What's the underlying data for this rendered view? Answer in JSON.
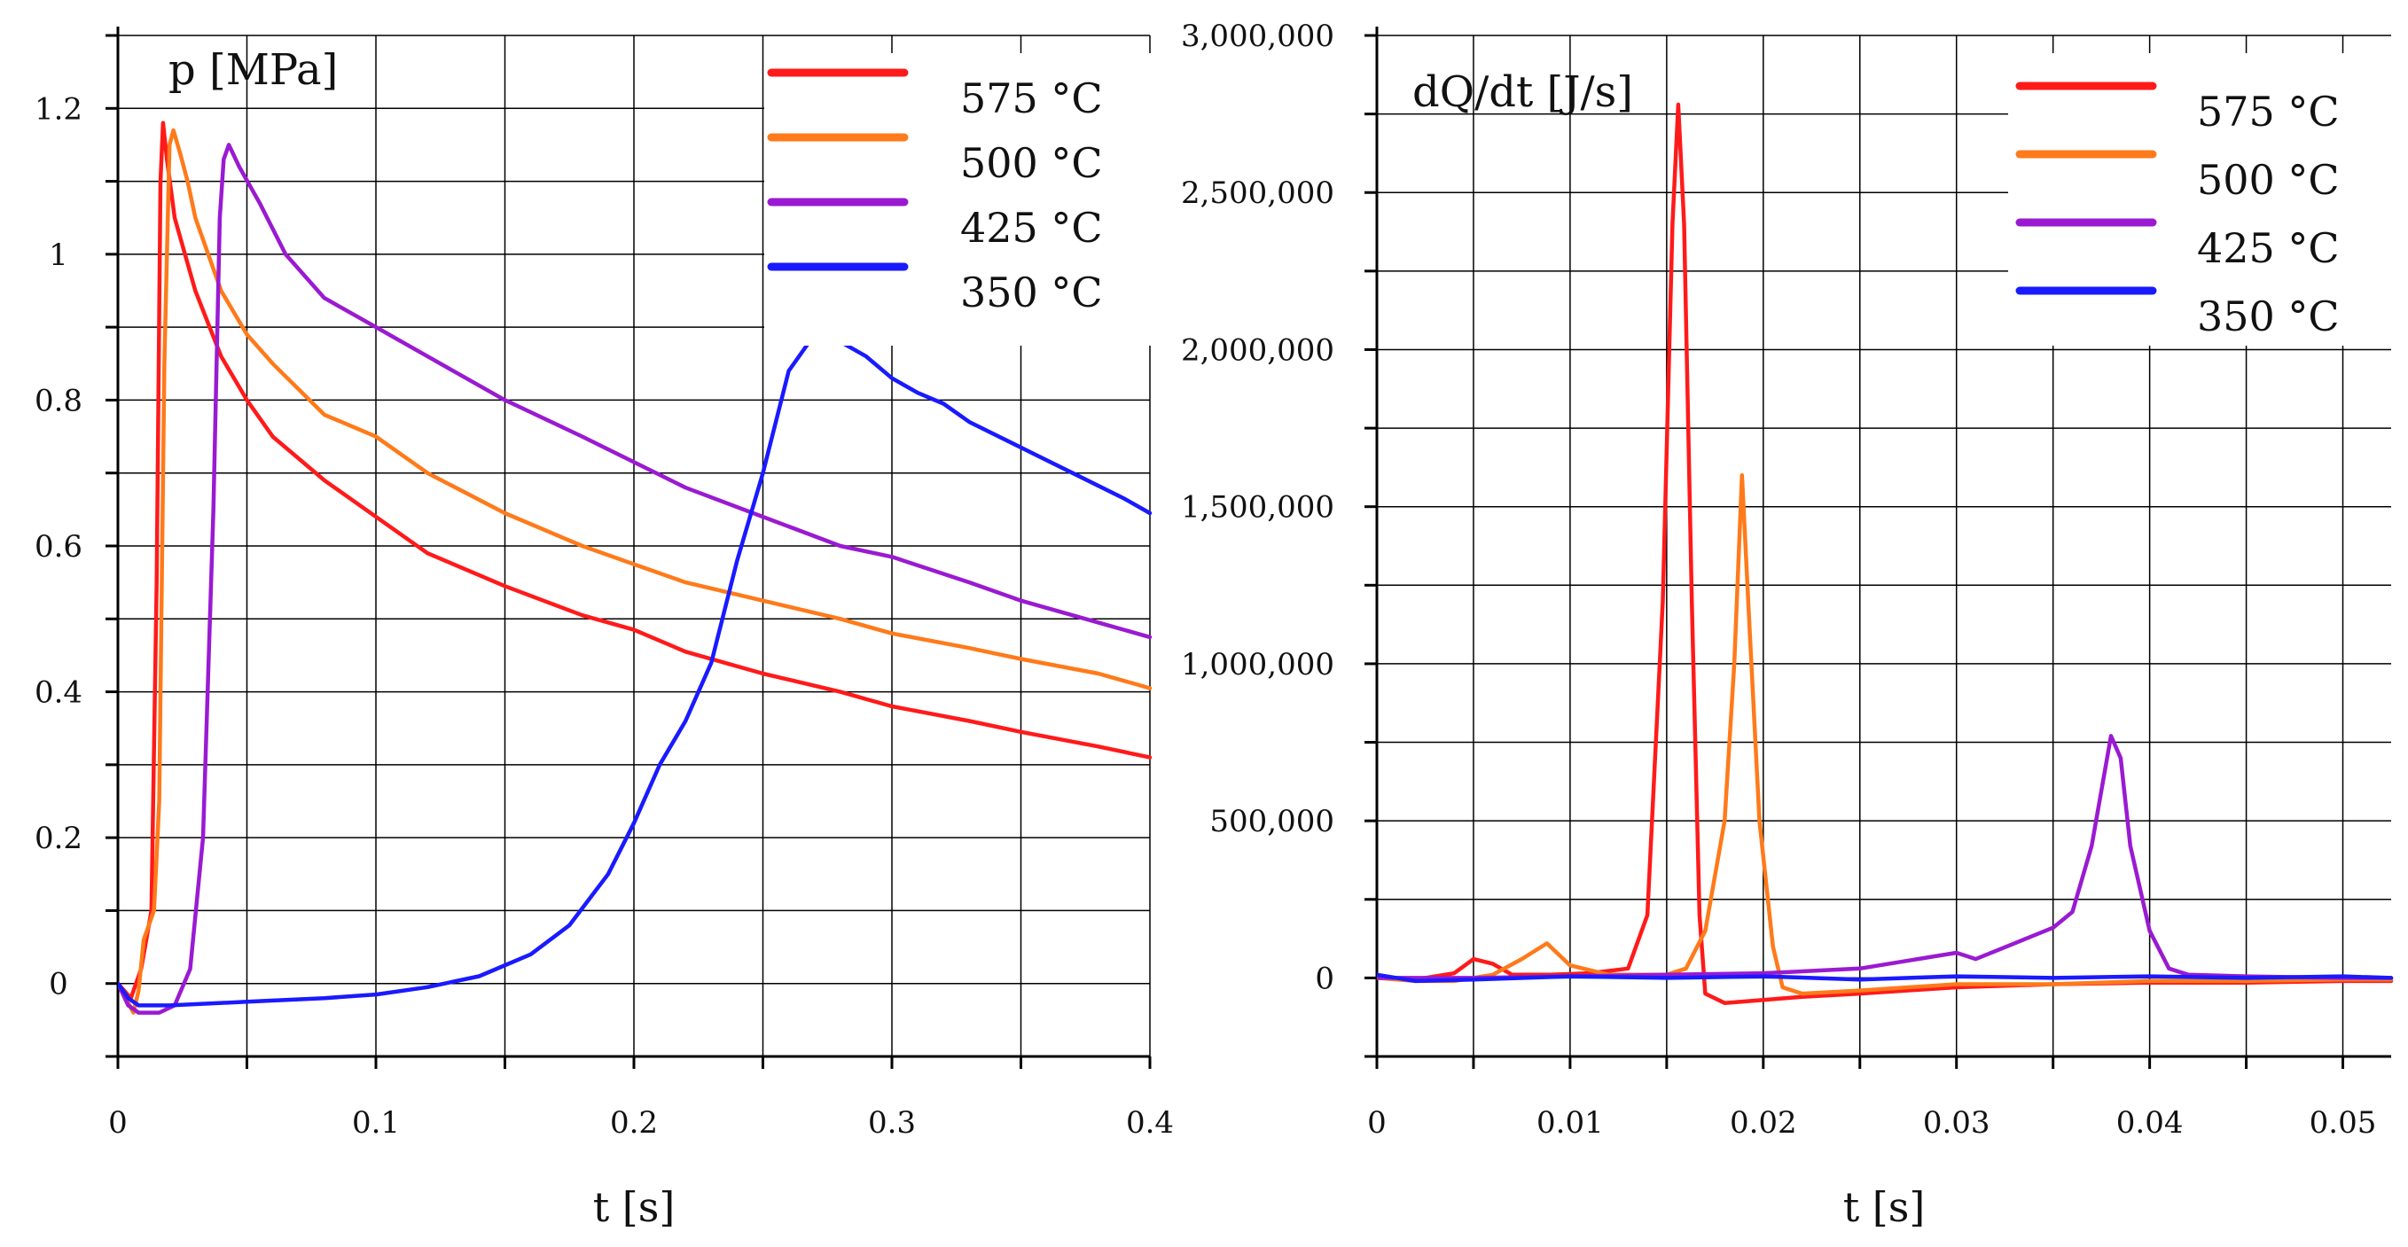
{
  "chart_data": [
    {
      "type": "line",
      "title": "p [MPa]",
      "xlabel": "t [s]",
      "ylabel": "p [MPa]",
      "xlim": [
        0,
        0.4
      ],
      "ylim": [
        -0.1,
        1.3
      ],
      "grid": true,
      "legend_position": "top-right",
      "x_ticks": [
        {
          "value": 0,
          "label": "0"
        },
        {
          "value": 0.1,
          "label": "0.1"
        },
        {
          "value": 0.2,
          "label": "0.2"
        },
        {
          "value": 0.3,
          "label": "0.3"
        },
        {
          "value": 0.4,
          "label": "0.4"
        }
      ],
      "y_ticks": [
        {
          "value": 0,
          "label": "0"
        },
        {
          "value": 0.2,
          "label": "0.2"
        },
        {
          "value": 0.4,
          "label": "0.4"
        },
        {
          "value": 0.6,
          "label": "0.6"
        },
        {
          "value": 0.8,
          "label": "0.8"
        },
        {
          "value": 1.0,
          "label": "1"
        },
        {
          "value": 1.2,
          "label": "1.2"
        }
      ],
      "series": [
        {
          "name": "575 °C",
          "color": "#ff1a1a",
          "points": [
            [
              0,
              0
            ],
            [
              0.005,
              -0.02
            ],
            [
              0.009,
              0.02
            ],
            [
              0.013,
              0.1
            ],
            [
              0.015,
              0.55
            ],
            [
              0.0165,
              1.1
            ],
            [
              0.0175,
              1.18
            ],
            [
              0.019,
              1.13
            ],
            [
              0.022,
              1.05
            ],
            [
              0.03,
              0.95
            ],
            [
              0.04,
              0.86
            ],
            [
              0.05,
              0.8
            ],
            [
              0.06,
              0.75
            ],
            [
              0.08,
              0.69
            ],
            [
              0.1,
              0.64
            ],
            [
              0.12,
              0.59
            ],
            [
              0.15,
              0.545
            ],
            [
              0.18,
              0.505
            ],
            [
              0.2,
              0.485
            ],
            [
              0.22,
              0.455
            ],
            [
              0.25,
              0.425
            ],
            [
              0.28,
              0.4
            ],
            [
              0.3,
              0.38
            ],
            [
              0.33,
              0.36
            ],
            [
              0.35,
              0.345
            ],
            [
              0.38,
              0.325
            ],
            [
              0.4,
              0.31
            ]
          ]
        },
        {
          "name": "500 °C",
          "color": "#ff7a1a",
          "points": [
            [
              0,
              0
            ],
            [
              0.006,
              -0.04
            ],
            [
              0.008,
              -0.01
            ],
            [
              0.01,
              0.06
            ],
            [
              0.014,
              0.1
            ],
            [
              0.016,
              0.25
            ],
            [
              0.018,
              0.85
            ],
            [
              0.02,
              1.15
            ],
            [
              0.0215,
              1.17
            ],
            [
              0.024,
              1.14
            ],
            [
              0.027,
              1.1
            ],
            [
              0.03,
              1.05
            ],
            [
              0.04,
              0.95
            ],
            [
              0.05,
              0.89
            ],
            [
              0.06,
              0.85
            ],
            [
              0.08,
              0.78
            ],
            [
              0.1,
              0.75
            ],
            [
              0.12,
              0.7
            ],
            [
              0.15,
              0.645
            ],
            [
              0.18,
              0.6
            ],
            [
              0.2,
              0.575
            ],
            [
              0.22,
              0.55
            ],
            [
              0.25,
              0.525
            ],
            [
              0.28,
              0.5
            ],
            [
              0.3,
              0.48
            ],
            [
              0.33,
              0.46
            ],
            [
              0.35,
              0.445
            ],
            [
              0.38,
              0.425
            ],
            [
              0.4,
              0.405
            ]
          ]
        },
        {
          "name": "425 °C",
          "color": "#9a1ad2",
          "points": [
            [
              0,
              0
            ],
            [
              0.004,
              -0.03
            ],
            [
              0.008,
              -0.04
            ],
            [
              0.016,
              -0.04
            ],
            [
              0.022,
              -0.03
            ],
            [
              0.028,
              0.02
            ],
            [
              0.033,
              0.2
            ],
            [
              0.037,
              0.65
            ],
            [
              0.0395,
              1.05
            ],
            [
              0.041,
              1.13
            ],
            [
              0.043,
              1.15
            ],
            [
              0.047,
              1.12
            ],
            [
              0.055,
              1.07
            ],
            [
              0.065,
              1.0
            ],
            [
              0.08,
              0.94
            ],
            [
              0.1,
              0.9
            ],
            [
              0.12,
              0.86
            ],
            [
              0.15,
              0.8
            ],
            [
              0.18,
              0.75
            ],
            [
              0.2,
              0.715
            ],
            [
              0.22,
              0.68
            ],
            [
              0.25,
              0.64
            ],
            [
              0.28,
              0.6
            ],
            [
              0.3,
              0.585
            ],
            [
              0.33,
              0.55
            ],
            [
              0.35,
              0.525
            ],
            [
              0.38,
              0.495
            ],
            [
              0.4,
              0.475
            ]
          ]
        },
        {
          "name": "350 °C",
          "color": "#1a1aff",
          "points": [
            [
              0,
              0
            ],
            [
              0.004,
              -0.02
            ],
            [
              0.008,
              -0.03
            ],
            [
              0.02,
              -0.03
            ],
            [
              0.05,
              -0.025
            ],
            [
              0.08,
              -0.02
            ],
            [
              0.1,
              -0.015
            ],
            [
              0.12,
              -0.005
            ],
            [
              0.14,
              0.01
            ],
            [
              0.16,
              0.04
            ],
            [
              0.175,
              0.08
            ],
            [
              0.19,
              0.15
            ],
            [
              0.2,
              0.22
            ],
            [
              0.21,
              0.3
            ],
            [
              0.22,
              0.36
            ],
            [
              0.23,
              0.44
            ],
            [
              0.24,
              0.58
            ],
            [
              0.25,
              0.7
            ],
            [
              0.26,
              0.84
            ],
            [
              0.27,
              0.89
            ],
            [
              0.28,
              0.88
            ],
            [
              0.29,
              0.86
            ],
            [
              0.3,
              0.83
            ],
            [
              0.31,
              0.81
            ],
            [
              0.32,
              0.795
            ],
            [
              0.33,
              0.77
            ],
            [
              0.35,
              0.735
            ],
            [
              0.37,
              0.7
            ],
            [
              0.39,
              0.665
            ],
            [
              0.4,
              0.645
            ]
          ]
        }
      ]
    },
    {
      "type": "line",
      "title": "dQ/dt [J/s]",
      "xlabel": "t [s]",
      "ylabel": "dQ/dt [J/s]",
      "xlim": [
        0,
        0.0525
      ],
      "ylim": [
        -250000,
        3000000
      ],
      "grid": true,
      "legend_position": "top-right",
      "x_ticks": [
        {
          "value": 0,
          "label": "0"
        },
        {
          "value": 0.01,
          "label": "0.01"
        },
        {
          "value": 0.02,
          "label": "0.02"
        },
        {
          "value": 0.03,
          "label": "0.03"
        },
        {
          "value": 0.04,
          "label": "0.04"
        },
        {
          "value": 0.05,
          "label": "0.05"
        }
      ],
      "y_ticks": [
        {
          "value": 0,
          "label": "0"
        },
        {
          "value": 500000,
          "label": "500,000"
        },
        {
          "value": 1000000,
          "label": "1,000,000"
        },
        {
          "value": 1500000,
          "label": "1,500,000"
        },
        {
          "value": 2000000,
          "label": "2,000,000"
        },
        {
          "value": 2500000,
          "label": "2,500,000"
        },
        {
          "value": 3000000,
          "label": "3,000,000"
        }
      ],
      "series": [
        {
          "name": "575 °C",
          "color": "#ff1a1a",
          "points": [
            [
              0,
              0
            ],
            [
              0.002,
              -5000
            ],
            [
              0.004,
              15000
            ],
            [
              0.005,
              60000
            ],
            [
              0.006,
              45000
            ],
            [
              0.007,
              10000
            ],
            [
              0.009,
              10000
            ],
            [
              0.011,
              15000
            ],
            [
              0.013,
              30000
            ],
            [
              0.014,
              200000
            ],
            [
              0.0148,
              1200000
            ],
            [
              0.0153,
              2400000
            ],
            [
              0.0156,
              2780000
            ],
            [
              0.0159,
              2400000
            ],
            [
              0.0163,
              1200000
            ],
            [
              0.0167,
              200000
            ],
            [
              0.017,
              -50000
            ],
            [
              0.018,
              -80000
            ],
            [
              0.02,
              -70000
            ],
            [
              0.022,
              -60000
            ],
            [
              0.025,
              -50000
            ],
            [
              0.03,
              -30000
            ],
            [
              0.035,
              -20000
            ],
            [
              0.04,
              -15000
            ],
            [
              0.045,
              -15000
            ],
            [
              0.05,
              -10000
            ],
            [
              0.0525,
              -10000
            ]
          ]
        },
        {
          "name": "500 °C",
          "color": "#ff7a1a",
          "points": [
            [
              0,
              0
            ],
            [
              0.002,
              -10000
            ],
            [
              0.004,
              -10000
            ],
            [
              0.006,
              10000
            ],
            [
              0.0075,
              60000
            ],
            [
              0.0088,
              110000
            ],
            [
              0.01,
              40000
            ],
            [
              0.012,
              10000
            ],
            [
              0.015,
              10000
            ],
            [
              0.016,
              30000
            ],
            [
              0.017,
              150000
            ],
            [
              0.018,
              500000
            ],
            [
              0.0185,
              1000000
            ],
            [
              0.0189,
              1600000
            ],
            [
              0.0193,
              1100000
            ],
            [
              0.0198,
              500000
            ],
            [
              0.0205,
              100000
            ],
            [
              0.021,
              -30000
            ],
            [
              0.022,
              -50000
            ],
            [
              0.025,
              -40000
            ],
            [
              0.03,
              -20000
            ],
            [
              0.035,
              -20000
            ],
            [
              0.04,
              -10000
            ],
            [
              0.045,
              -10000
            ],
            [
              0.05,
              -5000
            ],
            [
              0.0525,
              -5000
            ]
          ]
        },
        {
          "name": "425 °C",
          "color": "#9a1ad2",
          "points": [
            [
              0,
              0
            ],
            [
              0.005,
              0
            ],
            [
              0.01,
              5000
            ],
            [
              0.015,
              10000
            ],
            [
              0.02,
              15000
            ],
            [
              0.025,
              30000
            ],
            [
              0.028,
              60000
            ],
            [
              0.03,
              80000
            ],
            [
              0.031,
              60000
            ],
            [
              0.033,
              110000
            ],
            [
              0.035,
              160000
            ],
            [
              0.036,
              210000
            ],
            [
              0.037,
              420000
            ],
            [
              0.038,
              770000
            ],
            [
              0.0385,
              700000
            ],
            [
              0.039,
              420000
            ],
            [
              0.04,
              150000
            ],
            [
              0.041,
              30000
            ],
            [
              0.042,
              10000
            ],
            [
              0.045,
              5000
            ],
            [
              0.05,
              0
            ],
            [
              0.0525,
              0
            ]
          ]
        },
        {
          "name": "350 °C",
          "color": "#1a1aff",
          "points": [
            [
              0,
              10000
            ],
            [
              0.002,
              -10000
            ],
            [
              0.005,
              -5000
            ],
            [
              0.01,
              5000
            ],
            [
              0.015,
              0
            ],
            [
              0.02,
              5000
            ],
            [
              0.025,
              -5000
            ],
            [
              0.03,
              5000
            ],
            [
              0.035,
              0
            ],
            [
              0.04,
              5000
            ],
            [
              0.045,
              0
            ],
            [
              0.05,
              5000
            ],
            [
              0.0525,
              0
            ]
          ]
        }
      ]
    }
  ]
}
